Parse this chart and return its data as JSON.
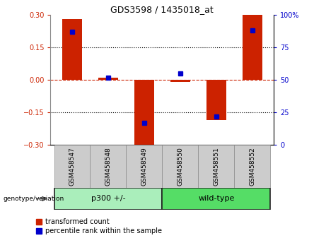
{
  "title": "GDS3598 / 1435018_at",
  "samples": [
    "GSM458547",
    "GSM458548",
    "GSM458549",
    "GSM458550",
    "GSM458551",
    "GSM458552"
  ],
  "transformed_count": [
    0.28,
    0.01,
    -0.3,
    -0.01,
    -0.185,
    0.3
  ],
  "percentile_rank": [
    87,
    52,
    17,
    55,
    22,
    88
  ],
  "ylim_left": [
    -0.3,
    0.3
  ],
  "ylim_right": [
    0,
    100
  ],
  "yticks_left": [
    -0.3,
    -0.15,
    0,
    0.15,
    0.3
  ],
  "yticks_right": [
    0,
    25,
    50,
    75,
    100
  ],
  "ytick_labels_right": [
    "0",
    "25",
    "50",
    "75",
    "100%"
  ],
  "bar_color": "#cc2200",
  "dot_color": "#0000cc",
  "dashed_line_color": "#cc2200",
  "dotted_line_color": "#000000",
  "groups": [
    {
      "label": "p300 +/-",
      "start": 0,
      "end": 3,
      "color": "#aaeebb"
    },
    {
      "label": "wild-type",
      "start": 3,
      "end": 6,
      "color": "#55dd66"
    }
  ],
  "group_label": "genotype/variation",
  "legend_items": [
    {
      "label": "transformed count",
      "color": "#cc2200"
    },
    {
      "label": "percentile rank within the sample",
      "color": "#0000cc"
    }
  ],
  "bar_width": 0.55,
  "tick_label_color_left": "#cc2200",
  "tick_label_color_right": "#0000cc",
  "sample_box_color": "#cccccc",
  "sample_box_edge": "#888888",
  "group_box_edge": "#222222"
}
